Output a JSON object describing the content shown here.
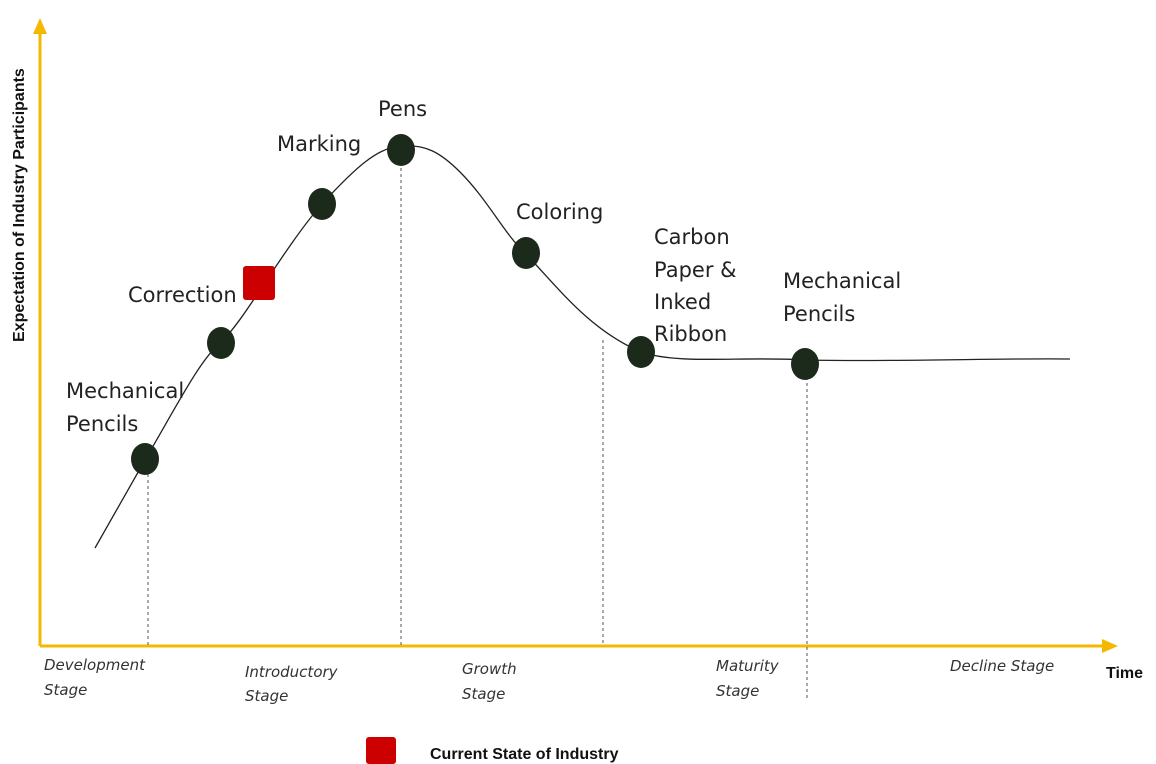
{
  "axes": {
    "y_title": "Expectation of Industry Participants",
    "x_title": "Time",
    "axis_color": "#F5B800"
  },
  "stages": [
    {
      "line1": "Development",
      "line2": "Stage"
    },
    {
      "line1": "Introductory",
      "line2": "Stage"
    },
    {
      "line1": "Growth",
      "line2": "Stage"
    },
    {
      "line1": "Maturity",
      "line2": "Stage"
    },
    {
      "line1": "Decline Stage",
      "line2": ""
    }
  ],
  "points": [
    {
      "label": "Mechanical\nPencils",
      "shape": "circle"
    },
    {
      "label": "",
      "shape": "circle"
    },
    {
      "label": "Correction",
      "shape": "square"
    },
    {
      "label": "Marking",
      "shape": "circle"
    },
    {
      "label": "Pens",
      "shape": "circle"
    },
    {
      "label": "Coloring",
      "shape": "circle"
    },
    {
      "label": "Carbon\nPaper &\nInked\nRibbon",
      "shape": "circle"
    },
    {
      "label": "Mechanical\nPencils",
      "shape": "circle"
    }
  ],
  "colors": {
    "circle": "#1C2A1C",
    "current_state": "#CC0000",
    "curve": "#222222"
  },
  "legend": {
    "label": "Current State of Industry"
  }
}
